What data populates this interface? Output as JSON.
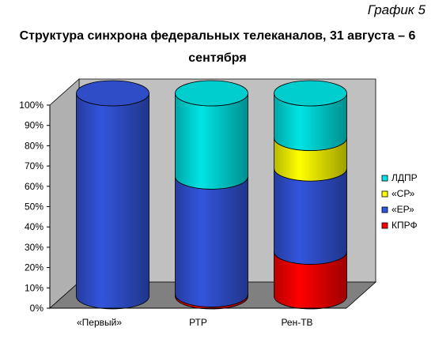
{
  "caption": "График 5",
  "chart_data": {
    "type": "bar",
    "stacked": true,
    "percent": true,
    "title": "Структура синхрона федеральных телеканалов, 31 августа – 6 сентября",
    "categories": [
      "«Первый»",
      "РТР",
      "Рен-ТВ"
    ],
    "series": [
      {
        "name": "КПРФ",
        "color": "#ff0000",
        "values": [
          0,
          1,
          22
        ]
      },
      {
        "name": "«ЕР»",
        "color": "#3355dd",
        "values": [
          100,
          58,
          41
        ]
      },
      {
        "name": "«СР»",
        "color": "#ffff00",
        "values": [
          0,
          0,
          15
        ]
      },
      {
        "name": "ЛДПР",
        "color": "#00e5e5",
        "values": [
          0,
          41,
          22
        ]
      }
    ],
    "yticks": [
      "0%",
      "10%",
      "20%",
      "30%",
      "40%",
      "50%",
      "60%",
      "70%",
      "80%",
      "90%",
      "100%"
    ],
    "ylim": [
      0,
      100
    ],
    "grid": false,
    "legend": "right"
  }
}
